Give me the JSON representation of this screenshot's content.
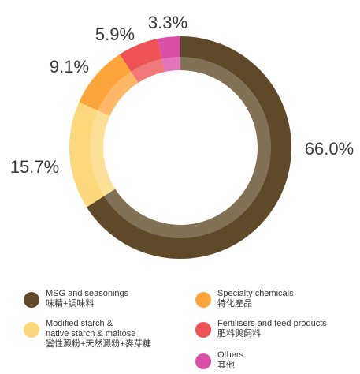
{
  "chart_data": {
    "type": "pie",
    "title": "",
    "slices": [
      {
        "label": "MSG and seasonings",
        "label_zh": "味精+調味料",
        "value": 66.0,
        "value_label": "66.0%",
        "color": "#5e4a28"
      },
      {
        "label": "Modified starch & native starch & maltose",
        "label_zh": "變性澱粉+天然澱粉+麥芽糖",
        "value": 15.7,
        "value_label": "15.7%",
        "color": "#fdd87c"
      },
      {
        "label": "Specialty chemicals",
        "label_zh": "特化產品",
        "value": 9.1,
        "value_label": "9.1%",
        "color": "#fba53b"
      },
      {
        "label": "Fertilisers and feed products",
        "label_zh": "肥料與飼料",
        "value": 5.9,
        "value_label": "5.9%",
        "color": "#ef5254"
      },
      {
        "label": "Others",
        "label_zh": "其他",
        "value": 3.3,
        "value_label": "3.3%",
        "color": "#d94fa6"
      }
    ]
  },
  "legend": {
    "items": [
      {
        "line1": "MSG and seasonings",
        "line2": "味精+調味料",
        "line3": "",
        "color": "#5e4a28"
      },
      {
        "line1": "Modified starch &",
        "line2": "native starch & maltose",
        "line3": "變性澱粉+天然澱粉+麥芽糖",
        "color": "#fdd87c"
      },
      {
        "line1": "Specialty chemicals",
        "line2": "特化產品",
        "line3": "",
        "color": "#fba53b"
      },
      {
        "line1": "Fertilisers and feed products",
        "line2": "肥料與飼料",
        "line3": "",
        "color": "#ef5254"
      },
      {
        "line1": "Others",
        "line2": "其他",
        "line3": "",
        "color": "#d94fa6"
      }
    ]
  }
}
